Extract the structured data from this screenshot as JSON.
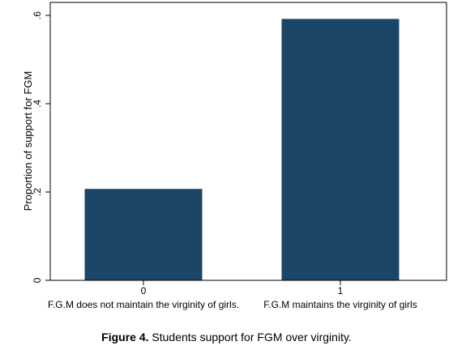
{
  "chart_data": {
    "type": "bar",
    "categories": [
      "0",
      "1"
    ],
    "category_descriptions": [
      "F.G.M does not  maintain the  virginity of girls.",
      "F.G.M maintains the virginity of girls"
    ],
    "values": [
      0.207,
      0.592
    ],
    "ylabel": "Proportion of  support for FGM",
    "xlabel": "",
    "ylim": [
      0,
      0.6
    ],
    "yticks": [
      0,
      0.2,
      0.4,
      0.6
    ],
    "ytick_labels": [
      "0",
      ".2",
      ".4",
      ".6"
    ],
    "grid": false,
    "legend": "none",
    "bar_color": "#1c4668"
  },
  "caption": {
    "lead": "Figure 4.",
    "text": " Students support for FGM over virginity."
  }
}
